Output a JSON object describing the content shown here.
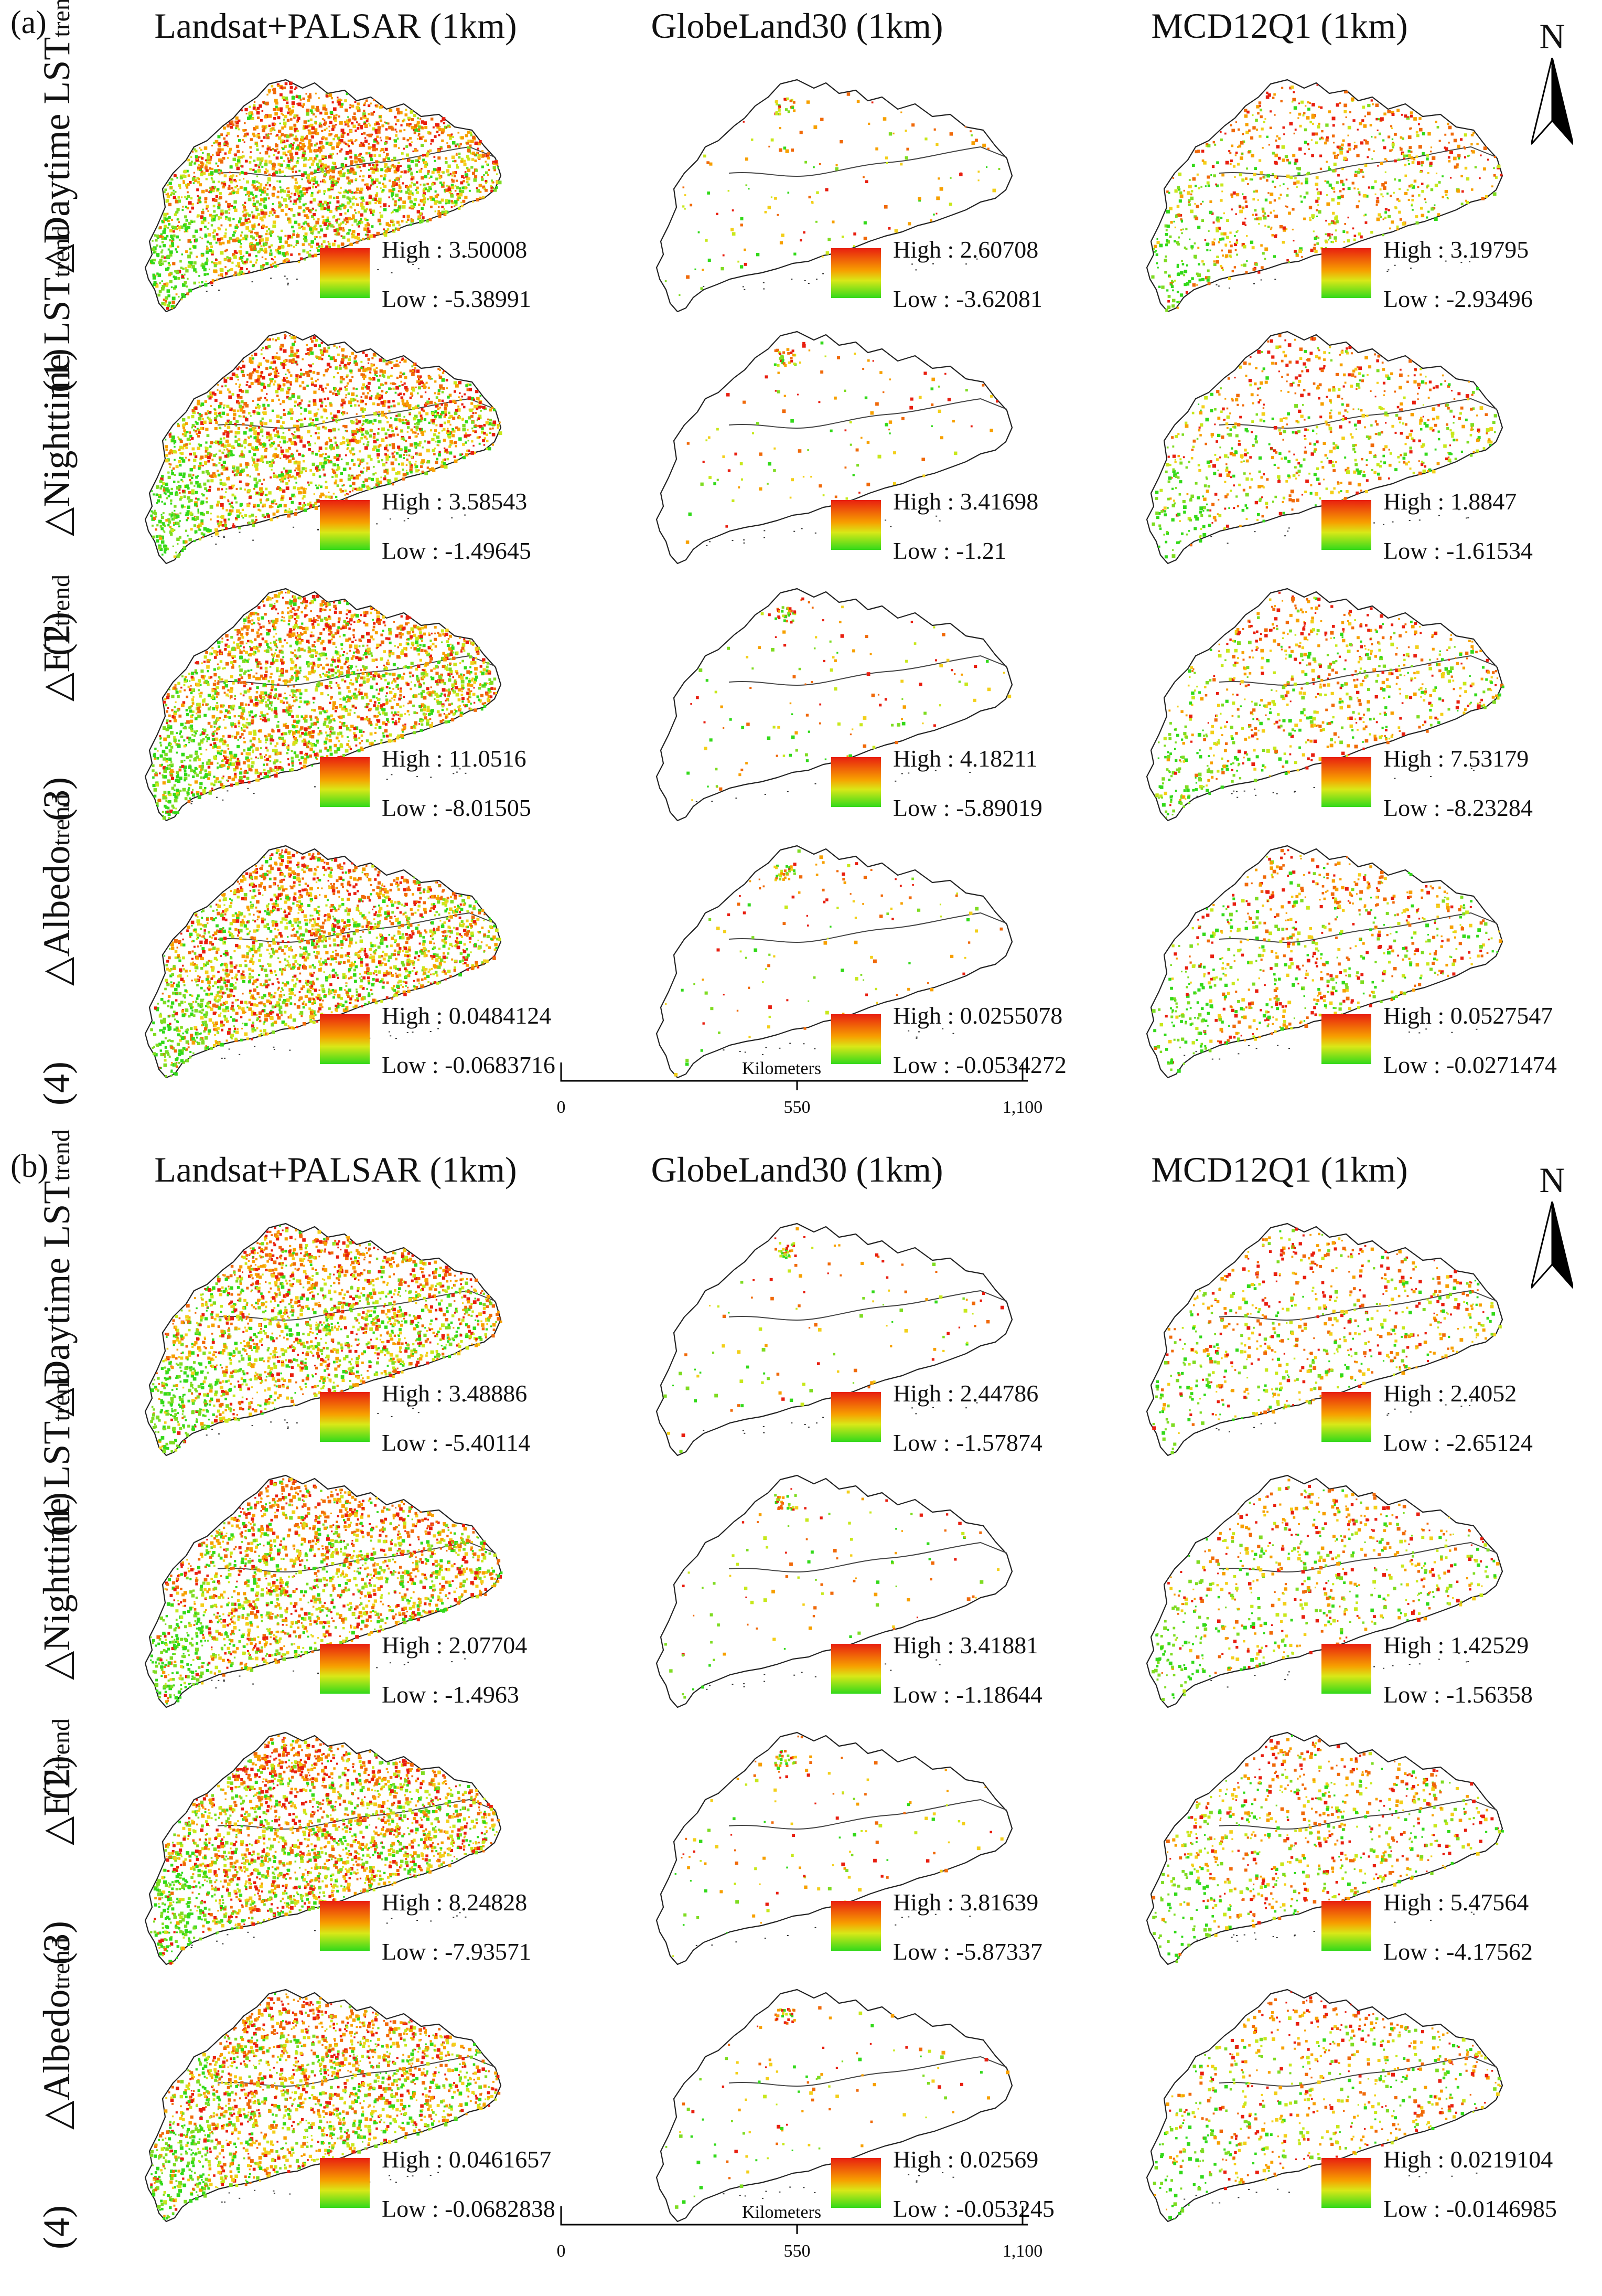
{
  "columns": [
    "Landsat+PALSAR (1km)",
    "GlobeLand30 (1km)",
    "MCD12Q1 (1km)"
  ],
  "north_label": "N",
  "row_numbers": [
    "(1)",
    "(2)",
    "(3)",
    "(4)"
  ],
  "row_labels": [
    {
      "prefix": "△Daytime LST",
      "sub": "trend"
    },
    {
      "prefix": "△Nighttime LST",
      "sub": "trend"
    },
    {
      "prefix": "△ET",
      "sub": "trend"
    },
    {
      "prefix": "△Albedo",
      "sub": "trend"
    }
  ],
  "scalebar": {
    "ticks": [
      "0",
      "550",
      "1,100"
    ],
    "unit": "Kilometers"
  },
  "legend_ramp": {
    "high_color": "#e81f10",
    "mid_color": "#f7a000",
    "low_color": "#33d91a"
  },
  "panels": [
    {
      "letter": "(a)",
      "legends": [
        [
          {
            "high": "High : 3.50008",
            "low": "Low : -5.38991"
          },
          {
            "high": "High : 2.60708",
            "low": "Low : -3.62081"
          },
          {
            "high": "High : 3.19795",
            "low": "Low : -2.93496"
          }
        ],
        [
          {
            "high": "High : 3.58543",
            "low": "Low : -1.49645"
          },
          {
            "high": "High : 3.41698",
            "low": "Low : -1.21"
          },
          {
            "high": "High : 1.8847",
            "low": "Low : -1.61534"
          }
        ],
        [
          {
            "high": "High : 11.0516",
            "low": "Low : -8.01505"
          },
          {
            "high": "High : 4.18211",
            "low": "Low : -5.89019"
          },
          {
            "high": "High : 7.53179",
            "low": "Low : -8.23284"
          }
        ],
        [
          {
            "high": "High : 0.0484124",
            "low": "Low : -0.0683716"
          },
          {
            "high": "High : 0.0255078",
            "low": "Low : -0.0534272"
          },
          {
            "high": "High : 0.0527547",
            "low": "Low : -0.0271474"
          }
        ]
      ]
    },
    {
      "letter": "(b)",
      "legends": [
        [
          {
            "high": "High : 3.48886",
            "low": "Low : -5.40114"
          },
          {
            "high": "High : 2.44786",
            "low": "Low : -1.57874"
          },
          {
            "high": "High : 2.4052",
            "low": "Low : -2.65124"
          }
        ],
        [
          {
            "high": "High : 2.07704",
            "low": "Low : -1.4963"
          },
          {
            "high": "High : 3.41881",
            "low": "Low : -1.18644"
          },
          {
            "high": "High : 1.42529",
            "low": "Low : -1.56358"
          }
        ],
        [
          {
            "high": "High : 8.24828",
            "low": "Low : -7.93571"
          },
          {
            "high": "High : 3.81639",
            "low": "Low : -5.87337"
          },
          {
            "high": "High : 5.47564",
            "low": "Low : -4.17562"
          }
        ],
        [
          {
            "high": "High : 0.0461657",
            "low": "Low : -0.0682838"
          },
          {
            "high": "High : 0.02569",
            "low": "Low : -0.053245"
          },
          {
            "high": "High : 0.0219104",
            "low": "Low : -0.0146985"
          }
        ]
      ]
    }
  ]
}
